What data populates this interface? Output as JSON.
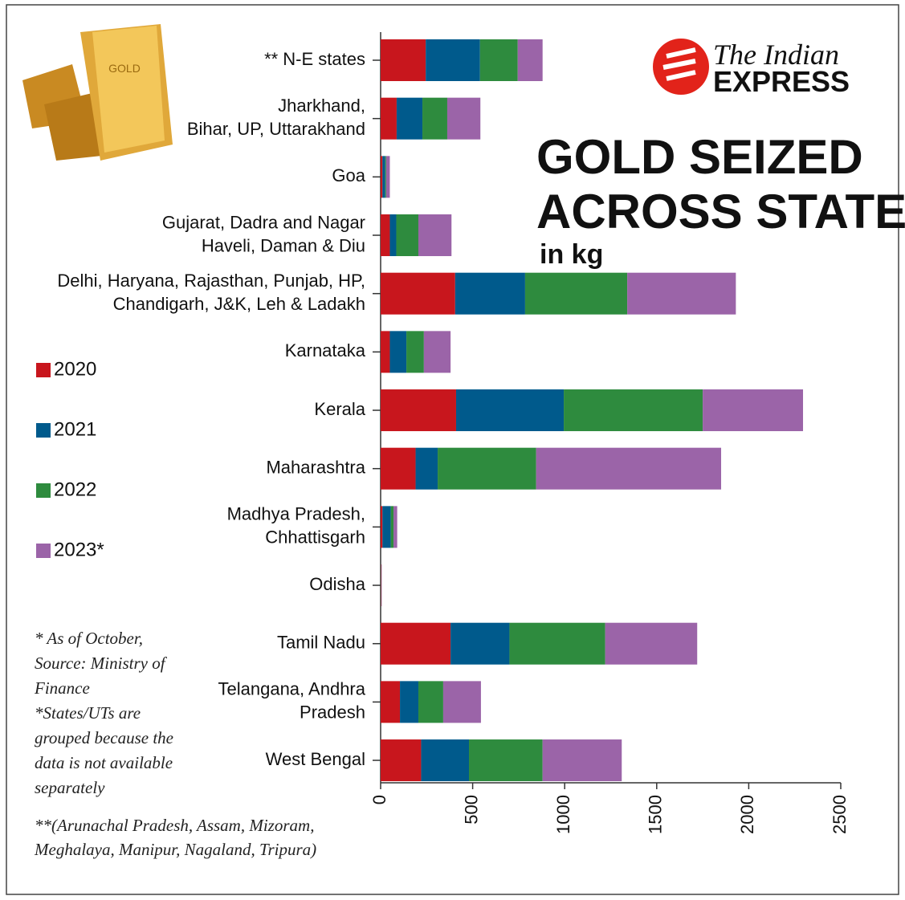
{
  "chart_data": {
    "type": "stacked-barh",
    "title": [
      "GOLD SEIZED",
      "ACROSS STATES"
    ],
    "subtitle": "in kg",
    "logo": [
      "The Indian",
      "EXPRESS"
    ],
    "categories": [
      [
        "** N-E states"
      ],
      [
        "Jharkhand,",
        "Bihar, UP, Uttarakhand"
      ],
      [
        "Goa"
      ],
      [
        "Gujarat, Dadra and Nagar",
        "Haveli, Daman & Diu"
      ],
      [
        "Delhi, Haryana, Rajasthan, Punjab, HP,",
        "Chandigarh, J&K, Leh & Ladakh"
      ],
      [
        "Karnataka"
      ],
      [
        "Kerala"
      ],
      [
        "Maharashtra"
      ],
      [
        "Madhya Pradesh,",
        "Chhattisgarh"
      ],
      [
        "Odisha"
      ],
      [
        "Tamil Nadu"
      ],
      [
        "Telangana, Andhra",
        "Pradesh"
      ],
      [
        "West Bengal"
      ]
    ],
    "series": [
      {
        "name": "2020",
        "color": "#c8161d",
        "values": [
          245,
          87,
          10,
          50,
          405,
          50,
          410,
          190,
          10,
          2,
          380,
          105,
          220
        ]
      },
      {
        "name": "2021",
        "color": "#005a8c",
        "values": [
          295,
          140,
          15,
          35,
          380,
          90,
          585,
          120,
          45,
          1,
          320,
          100,
          260
        ]
      },
      {
        "name": "2022",
        "color": "#2e8b3e",
        "values": [
          205,
          135,
          5,
          120,
          555,
          95,
          755,
          535,
          15,
          1,
          520,
          135,
          400
        ]
      },
      {
        "name": "2023*",
        "color": "#9b64a8",
        "values": [
          135,
          180,
          20,
          180,
          590,
          145,
          545,
          1005,
          20,
          2,
          500,
          205,
          430
        ]
      }
    ],
    "xlim": [
      0,
      2500
    ],
    "xticks": [
      0,
      500,
      1000,
      1500,
      2000,
      2500
    ],
    "notes": [
      [
        "* As of October,",
        "Source: Ministry of",
        "Finance",
        "*States/UTs are",
        "grouped because the",
        "data is not available",
        "separately"
      ],
      [
        "**(Arunachal Pradesh, Assam, Mizoram,",
        "Meghalaya, Manipur, Nagaland, Tripura)"
      ]
    ]
  }
}
